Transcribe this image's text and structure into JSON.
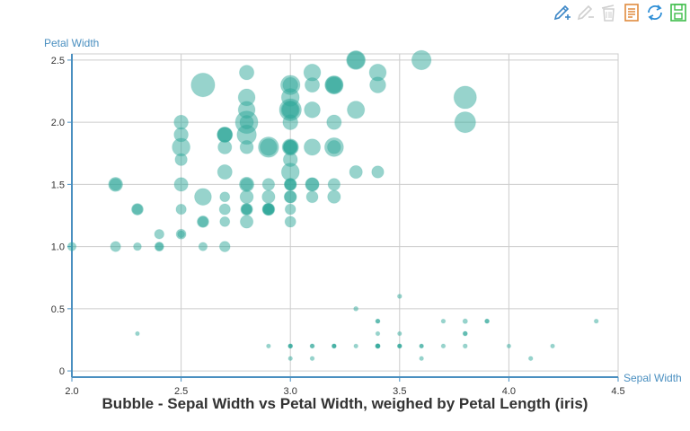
{
  "chart_data": {
    "type": "scatter",
    "subtype": "bubble",
    "title": "Bubble - Sepal Width vs Petal Width, weighed by Petal Length (iris)",
    "xlabel": "Sepal Width",
    "ylabel": "Petal Width",
    "xlim": [
      2.0,
      4.5
    ],
    "ylim": [
      -0.05,
      2.55
    ],
    "xticks": [
      "2.0",
      "2.5",
      "3.0",
      "3.5",
      "4.0",
      "4.5"
    ],
    "yticks": [
      "0",
      "0.5",
      "1.0",
      "1.5",
      "2.0",
      "2.5"
    ],
    "xtick_values": [
      2.0,
      2.5,
      3.0,
      3.5,
      4.0,
      4.5
    ],
    "ytick_values": [
      0,
      0.5,
      1.0,
      1.5,
      2.0,
      2.5
    ],
    "grid": true,
    "legend": "none",
    "color": "#2fa89a",
    "points": [
      {
        "x": 3.5,
        "y": 0.2,
        "size": 1.4
      },
      {
        "x": 3.0,
        "y": 0.2,
        "size": 1.4
      },
      {
        "x": 3.2,
        "y": 0.2,
        "size": 1.3
      },
      {
        "x": 3.1,
        "y": 0.2,
        "size": 1.5
      },
      {
        "x": 3.6,
        "y": 0.2,
        "size": 1.4
      },
      {
        "x": 3.9,
        "y": 0.4,
        "size": 1.7
      },
      {
        "x": 3.4,
        "y": 0.3,
        "size": 1.4
      },
      {
        "x": 3.4,
        "y": 0.2,
        "size": 1.5
      },
      {
        "x": 2.9,
        "y": 0.2,
        "size": 1.4
      },
      {
        "x": 3.1,
        "y": 0.1,
        "size": 1.5
      },
      {
        "x": 3.7,
        "y": 0.2,
        "size": 1.5
      },
      {
        "x": 3.0,
        "y": 0.1,
        "size": 1.4
      },
      {
        "x": 4.0,
        "y": 0.2,
        "size": 1.2
      },
      {
        "x": 4.4,
        "y": 0.4,
        "size": 1.5
      },
      {
        "x": 3.9,
        "y": 0.4,
        "size": 1.3
      },
      {
        "x": 3.8,
        "y": 0.3,
        "size": 1.7
      },
      {
        "x": 3.8,
        "y": 0.3,
        "size": 1.5
      },
      {
        "x": 3.4,
        "y": 0.2,
        "size": 1.7
      },
      {
        "x": 3.7,
        "y": 0.4,
        "size": 1.5
      },
      {
        "x": 3.6,
        "y": 0.2,
        "size": 1.0
      },
      {
        "x": 3.3,
        "y": 0.5,
        "size": 1.7
      },
      {
        "x": 3.4,
        "y": 0.2,
        "size": 1.9
      },
      {
        "x": 3.0,
        "y": 0.2,
        "size": 1.6
      },
      {
        "x": 3.4,
        "y": 0.4,
        "size": 1.6
      },
      {
        "x": 3.5,
        "y": 0.2,
        "size": 1.5
      },
      {
        "x": 3.2,
        "y": 0.2,
        "size": 1.6
      },
      {
        "x": 3.1,
        "y": 0.2,
        "size": 1.5
      },
      {
        "x": 3.4,
        "y": 0.4,
        "size": 1.5
      },
      {
        "x": 4.1,
        "y": 0.1,
        "size": 1.5
      },
      {
        "x": 4.2,
        "y": 0.2,
        "size": 1.4
      },
      {
        "x": 3.2,
        "y": 0.2,
        "size": 1.2
      },
      {
        "x": 3.5,
        "y": 0.2,
        "size": 1.3
      },
      {
        "x": 3.6,
        "y": 0.1,
        "size": 1.4
      },
      {
        "x": 3.0,
        "y": 0.2,
        "size": 1.3
      },
      {
        "x": 3.4,
        "y": 0.2,
        "size": 1.5
      },
      {
        "x": 3.5,
        "y": 0.3,
        "size": 1.3
      },
      {
        "x": 2.3,
        "y": 0.3,
        "size": 1.3
      },
      {
        "x": 3.5,
        "y": 0.6,
        "size": 1.6
      },
      {
        "x": 3.8,
        "y": 0.4,
        "size": 1.9
      },
      {
        "x": 3.8,
        "y": 0.2,
        "size": 1.6
      },
      {
        "x": 3.3,
        "y": 0.2,
        "size": 1.4
      },
      {
        "x": 3.2,
        "y": 1.4,
        "size": 4.7
      },
      {
        "x": 3.2,
        "y": 1.5,
        "size": 4.5
      },
      {
        "x": 3.1,
        "y": 1.5,
        "size": 4.9
      },
      {
        "x": 2.3,
        "y": 1.3,
        "size": 4.0
      },
      {
        "x": 2.8,
        "y": 1.5,
        "size": 4.6
      },
      {
        "x": 2.8,
        "y": 1.3,
        "size": 4.5
      },
      {
        "x": 3.3,
        "y": 1.6,
        "size": 4.7
      },
      {
        "x": 2.4,
        "y": 1.0,
        "size": 3.3
      },
      {
        "x": 2.9,
        "y": 1.3,
        "size": 4.6
      },
      {
        "x": 2.7,
        "y": 1.4,
        "size": 3.9
      },
      {
        "x": 2.0,
        "y": 1.0,
        "size": 3.5
      },
      {
        "x": 3.0,
        "y": 1.5,
        "size": 4.2
      },
      {
        "x": 2.2,
        "y": 1.0,
        "size": 4.0
      },
      {
        "x": 2.9,
        "y": 1.4,
        "size": 4.7
      },
      {
        "x": 2.9,
        "y": 1.3,
        "size": 3.6
      },
      {
        "x": 3.1,
        "y": 1.4,
        "size": 4.4
      },
      {
        "x": 3.0,
        "y": 1.5,
        "size": 4.5
      },
      {
        "x": 2.7,
        "y": 1.0,
        "size": 4.1
      },
      {
        "x": 2.2,
        "y": 1.5,
        "size": 4.5
      },
      {
        "x": 2.5,
        "y": 1.1,
        "size": 3.9
      },
      {
        "x": 3.2,
        "y": 1.8,
        "size": 4.8
      },
      {
        "x": 2.8,
        "y": 1.3,
        "size": 4.0
      },
      {
        "x": 2.5,
        "y": 1.5,
        "size": 4.9
      },
      {
        "x": 2.8,
        "y": 1.2,
        "size": 4.7
      },
      {
        "x": 2.9,
        "y": 1.3,
        "size": 4.3
      },
      {
        "x": 3.0,
        "y": 1.4,
        "size": 4.4
      },
      {
        "x": 2.8,
        "y": 1.4,
        "size": 4.8
      },
      {
        "x": 3.0,
        "y": 1.7,
        "size": 5.0
      },
      {
        "x": 2.9,
        "y": 1.5,
        "size": 4.5
      },
      {
        "x": 2.6,
        "y": 1.0,
        "size": 3.5
      },
      {
        "x": 2.4,
        "y": 1.1,
        "size": 3.8
      },
      {
        "x": 2.4,
        "y": 1.0,
        "size": 3.7
      },
      {
        "x": 2.7,
        "y": 1.2,
        "size": 3.9
      },
      {
        "x": 2.7,
        "y": 1.6,
        "size": 5.1
      },
      {
        "x": 3.0,
        "y": 1.5,
        "size": 4.5
      },
      {
        "x": 3.4,
        "y": 1.6,
        "size": 4.5
      },
      {
        "x": 3.1,
        "y": 1.5,
        "size": 4.7
      },
      {
        "x": 2.3,
        "y": 1.3,
        "size": 4.4
      },
      {
        "x": 3.0,
        "y": 1.3,
        "size": 4.1
      },
      {
        "x": 2.5,
        "y": 1.3,
        "size": 4.0
      },
      {
        "x": 2.6,
        "y": 1.2,
        "size": 4.4
      },
      {
        "x": 3.0,
        "y": 1.4,
        "size": 4.6
      },
      {
        "x": 2.6,
        "y": 1.2,
        "size": 4.0
      },
      {
        "x": 2.3,
        "y": 1.0,
        "size": 3.3
      },
      {
        "x": 2.7,
        "y": 1.3,
        "size": 4.2
      },
      {
        "x": 3.0,
        "y": 1.2,
        "size": 4.2
      },
      {
        "x": 2.9,
        "y": 1.3,
        "size": 4.2
      },
      {
        "x": 2.9,
        "y": 1.3,
        "size": 4.3
      },
      {
        "x": 2.5,
        "y": 1.1,
        "size": 3.0
      },
      {
        "x": 2.8,
        "y": 1.3,
        "size": 4.1
      },
      {
        "x": 3.3,
        "y": 2.5,
        "size": 6.0
      },
      {
        "x": 2.7,
        "y": 1.9,
        "size": 5.1
      },
      {
        "x": 3.0,
        "y": 2.1,
        "size": 5.9
      },
      {
        "x": 2.9,
        "y": 1.8,
        "size": 5.6
      },
      {
        "x": 3.0,
        "y": 2.2,
        "size": 5.8
      },
      {
        "x": 3.0,
        "y": 2.1,
        "size": 6.6
      },
      {
        "x": 2.5,
        "y": 1.7,
        "size": 4.5
      },
      {
        "x": 2.9,
        "y": 1.8,
        "size": 6.3
      },
      {
        "x": 2.5,
        "y": 1.8,
        "size": 5.8
      },
      {
        "x": 3.6,
        "y": 2.5,
        "size": 6.1
      },
      {
        "x": 3.2,
        "y": 2.0,
        "size": 5.1
      },
      {
        "x": 2.7,
        "y": 1.9,
        "size": 5.3
      },
      {
        "x": 3.0,
        "y": 2.1,
        "size": 5.5
      },
      {
        "x": 2.5,
        "y": 2.0,
        "size": 5.0
      },
      {
        "x": 2.8,
        "y": 2.4,
        "size": 5.1
      },
      {
        "x": 3.2,
        "y": 2.3,
        "size": 5.3
      },
      {
        "x": 3.0,
        "y": 1.8,
        "size": 5.5
      },
      {
        "x": 3.8,
        "y": 2.2,
        "size": 6.7
      },
      {
        "x": 2.6,
        "y": 2.3,
        "size": 6.9
      },
      {
        "x": 2.2,
        "y": 1.5,
        "size": 5.0
      },
      {
        "x": 3.2,
        "y": 2.3,
        "size": 5.7
      },
      {
        "x": 2.8,
        "y": 2.0,
        "size": 4.9
      },
      {
        "x": 2.8,
        "y": 2.0,
        "size": 6.7
      },
      {
        "x": 2.7,
        "y": 1.8,
        "size": 4.9
      },
      {
        "x": 3.3,
        "y": 2.1,
        "size": 5.7
      },
      {
        "x": 3.2,
        "y": 1.8,
        "size": 6.0
      },
      {
        "x": 2.8,
        "y": 1.8,
        "size": 4.8
      },
      {
        "x": 3.0,
        "y": 1.8,
        "size": 4.9
      },
      {
        "x": 2.8,
        "y": 2.1,
        "size": 5.6
      },
      {
        "x": 3.0,
        "y": 1.6,
        "size": 5.8
      },
      {
        "x": 2.8,
        "y": 1.9,
        "size": 6.1
      },
      {
        "x": 3.8,
        "y": 2.0,
        "size": 6.4
      },
      {
        "x": 2.8,
        "y": 2.2,
        "size": 5.6
      },
      {
        "x": 2.8,
        "y": 1.5,
        "size": 5.1
      },
      {
        "x": 2.6,
        "y": 1.4,
        "size": 5.6
      },
      {
        "x": 3.0,
        "y": 2.3,
        "size": 6.1
      },
      {
        "x": 3.4,
        "y": 2.4,
        "size": 5.6
      },
      {
        "x": 3.1,
        "y": 1.8,
        "size": 5.5
      },
      {
        "x": 3.0,
        "y": 1.8,
        "size": 4.8
      },
      {
        "x": 3.1,
        "y": 2.1,
        "size": 5.4
      },
      {
        "x": 3.1,
        "y": 2.4,
        "size": 5.6
      },
      {
        "x": 3.1,
        "y": 2.3,
        "size": 5.1
      },
      {
        "x": 2.7,
        "y": 1.9,
        "size": 5.1
      },
      {
        "x": 3.2,
        "y": 2.3,
        "size": 5.9
      },
      {
        "x": 3.3,
        "y": 2.5,
        "size": 5.7
      },
      {
        "x": 3.0,
        "y": 2.3,
        "size": 5.2
      },
      {
        "x": 2.5,
        "y": 1.9,
        "size": 5.0
      },
      {
        "x": 3.0,
        "y": 2.0,
        "size": 5.2
      },
      {
        "x": 3.4,
        "y": 2.3,
        "size": 5.4
      },
      {
        "x": 3.0,
        "y": 1.8,
        "size": 5.1
      }
    ]
  },
  "toolbar": {
    "tools": [
      {
        "name": "edit-add-icon",
        "color": "#3b86c6"
      },
      {
        "name": "edit-remove-icon",
        "color": "#cfcfcf"
      },
      {
        "name": "delete-icon",
        "color": "#cfcfcf"
      },
      {
        "name": "data-view-icon",
        "color": "#e08b3e"
      },
      {
        "name": "refresh-icon",
        "color": "#2f8fd6"
      },
      {
        "name": "save-image-icon",
        "color": "#3ebd4a"
      }
    ]
  }
}
